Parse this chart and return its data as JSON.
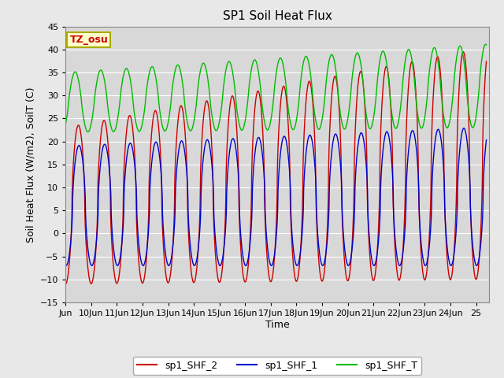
{
  "title": "SP1 Soil Heat Flux",
  "xlabel": "Time",
  "ylabel": "Soil Heat Flux (W/m2), SoilT (C)",
  "ylim": [
    -15,
    45
  ],
  "xlim_days": [
    9.0,
    25.5
  ],
  "yticks": [
    -15,
    -10,
    -5,
    0,
    5,
    10,
    15,
    20,
    25,
    30,
    35,
    40,
    45
  ],
  "xtick_labels": [
    "Jun",
    "10Jun",
    "11Jun",
    "12Jun",
    "13Jun",
    "14Jun",
    "15Jun",
    "16Jun",
    "17Jun",
    "18Jun",
    "19Jun",
    "20Jun",
    "21Jun",
    "22Jun",
    "23Jun",
    "24Jun",
    "25"
  ],
  "xtick_positions": [
    9.0,
    10.0,
    11.0,
    12.0,
    13.0,
    14.0,
    15.0,
    16.0,
    17.0,
    18.0,
    19.0,
    20.0,
    21.0,
    22.0,
    23.0,
    24.0,
    25.0
  ],
  "color_shf2": "#cc0000",
  "color_shf1": "#0000cc",
  "color_shft": "#00bb00",
  "bg_color": "#d8d8d8",
  "grid_color": "#ffffff",
  "legend_labels": [
    "sp1_SHF_2",
    "sp1_SHF_1",
    "sp1_SHF_T"
  ],
  "tz_osu_label": "TZ_osu",
  "tz_box_color": "#ffffcc",
  "tz_text_color": "#cc0000",
  "tz_border_color": "#aaaa00",
  "title_fontsize": 11,
  "axis_label_fontsize": 9,
  "tick_fontsize": 8,
  "legend_fontsize": 9
}
